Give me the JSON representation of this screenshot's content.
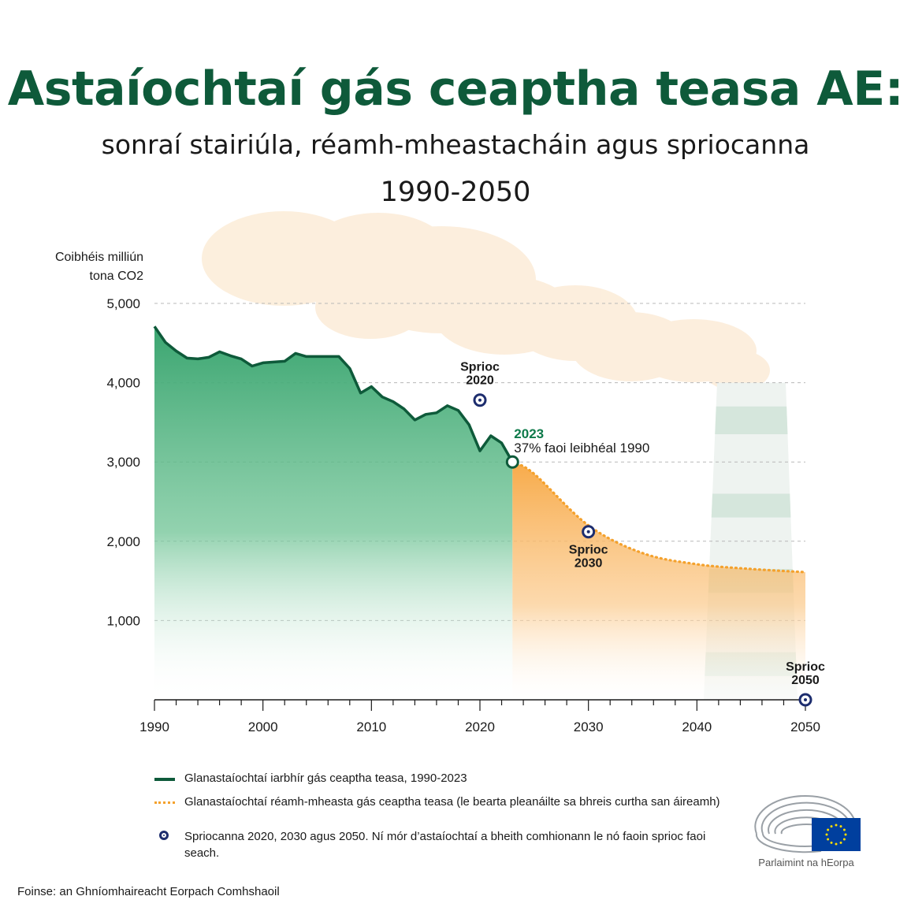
{
  "header": {
    "title": "Astaíochtaí gás ceaptha teasa AE:",
    "subtitle": "sonraí stairiúla, réamh-mheastacháin agus spriocanna",
    "years": "1990-2050"
  },
  "chart_data": {
    "type": "area",
    "ylabel_line1": "Coibhéis milliún",
    "ylabel_line2": "tona CO2",
    "ylim": [
      0,
      5000
    ],
    "xlim": [
      1990,
      2050
    ],
    "y_ticks": [
      1000,
      2000,
      3000,
      4000,
      5000
    ],
    "y_tick_labels": [
      "1,000",
      "2,000",
      "3,000",
      "4,000",
      "5,000"
    ],
    "x_ticks": [
      1990,
      2000,
      2010,
      2020,
      2030,
      2040,
      2050
    ],
    "x_tick_labels": [
      "1990",
      "2000",
      "2010",
      "2020",
      "2030",
      "2040",
      "2050"
    ],
    "grid": true,
    "series": [
      {
        "name": "Glanastaíochtaí iarbhír gás ceaptha teasa, 1990-2023",
        "color": "#0e5a3a",
        "fill": "#3aa570",
        "x": [
          1990,
          1991,
          1992,
          1993,
          1994,
          1995,
          1996,
          1997,
          1998,
          1999,
          2000,
          2001,
          2002,
          2003,
          2004,
          2005,
          2006,
          2007,
          2008,
          2009,
          2010,
          2011,
          2012,
          2013,
          2014,
          2015,
          2016,
          2017,
          2018,
          2019,
          2020,
          2021,
          2022,
          2023
        ],
        "values": [
          4710,
          4510,
          4400,
          4310,
          4300,
          4320,
          4390,
          4340,
          4300,
          4210,
          4250,
          4260,
          4270,
          4370,
          4330,
          4330,
          4330,
          4330,
          4180,
          3870,
          3950,
          3820,
          3760,
          3670,
          3530,
          3600,
          3620,
          3710,
          3650,
          3470,
          3140,
          3330,
          3240,
          3000
        ]
      },
      {
        "name": "Glanastaíochtaí réamh-mheasta gás ceaptha teasa (le bearta pleanáilte sa bhreis curtha san áireamh)",
        "color": "#f4a12c",
        "fill": "#f7b25a",
        "x": [
          2023,
          2025,
          2030,
          2035,
          2040,
          2045,
          2050
        ],
        "values": [
          3000,
          2850,
          2200,
          1850,
          1710,
          1650,
          1610
        ]
      }
    ],
    "targets": [
      {
        "year": 2020,
        "value": 3780,
        "label_line1": "Sprioc",
        "label_line2": "2020"
      },
      {
        "year": 2030,
        "value": 2120,
        "label_line1": "Sprioc",
        "label_line2": "2030"
      },
      {
        "year": 2050,
        "value": 0,
        "label_line1": "Sprioc",
        "label_line2": "2050"
      }
    ],
    "annotation": {
      "year": 2023,
      "value": 3000,
      "title": "2023",
      "text": "37% faoi leibhéal 1990"
    },
    "targets_legend": "Spriocanna 2020, 2030 agus 2050. Ní mór d’astaíochtaí a bheith comhionann le nó faoin sprioc faoi seach.",
    "colors": {
      "title": "#0e5a3a",
      "historic": "#0e5a3a",
      "projection": "#f4a12c",
      "target": "#1d2d6e",
      "cloud": "#fbe9d2",
      "chimney": "#d9e7e0"
    }
  },
  "footer": {
    "source": "Foinse: an Ghníomhaireacht Eorpach Comhshaoil",
    "logo_text": "Parlaimint na hEorpa"
  }
}
